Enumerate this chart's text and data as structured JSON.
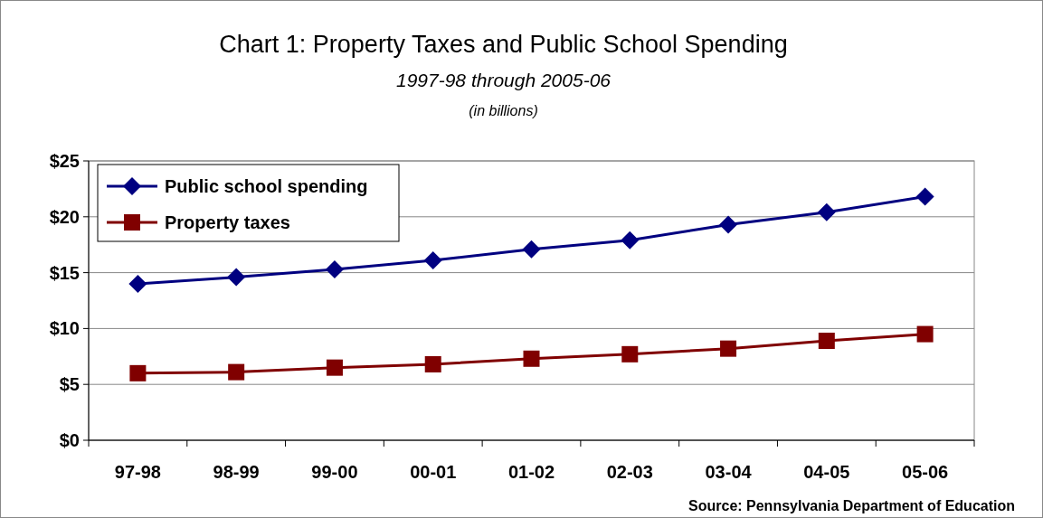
{
  "chart_data": {
    "type": "line",
    "title": "Chart 1: Property Taxes and Public School Spending",
    "subtitle": "1997-98 through 2005-06",
    "annotations": [
      "(in billions)",
      "Source: Pennsylvania Department of Education"
    ],
    "categories": [
      "97-98",
      "98-99",
      "99-00",
      "00-01",
      "01-02",
      "02-03",
      "03-04",
      "04-05",
      "05-06"
    ],
    "series": [
      {
        "name": "Public school spending",
        "color": "#000080",
        "marker": "diamond",
        "values": [
          14.0,
          14.6,
          15.3,
          16.1,
          17.1,
          17.9,
          19.3,
          20.4,
          21.8
        ]
      },
      {
        "name": "Property taxes",
        "color": "#800000",
        "marker": "square",
        "values": [
          6.0,
          6.1,
          6.5,
          6.8,
          7.3,
          7.7,
          8.2,
          8.9,
          9.5
        ]
      }
    ],
    "ylim": [
      0,
      25
    ],
    "yticks": [
      {
        "value": 0,
        "label": "$0"
      },
      {
        "value": 5,
        "label": "$5"
      },
      {
        "value": 10,
        "label": "$10"
      },
      {
        "value": 15,
        "label": "$15"
      },
      {
        "value": 20,
        "label": "$20"
      },
      {
        "value": 25,
        "label": "$25"
      }
    ],
    "grid": "y",
    "legend": "top left",
    "line_style": "solid"
  }
}
